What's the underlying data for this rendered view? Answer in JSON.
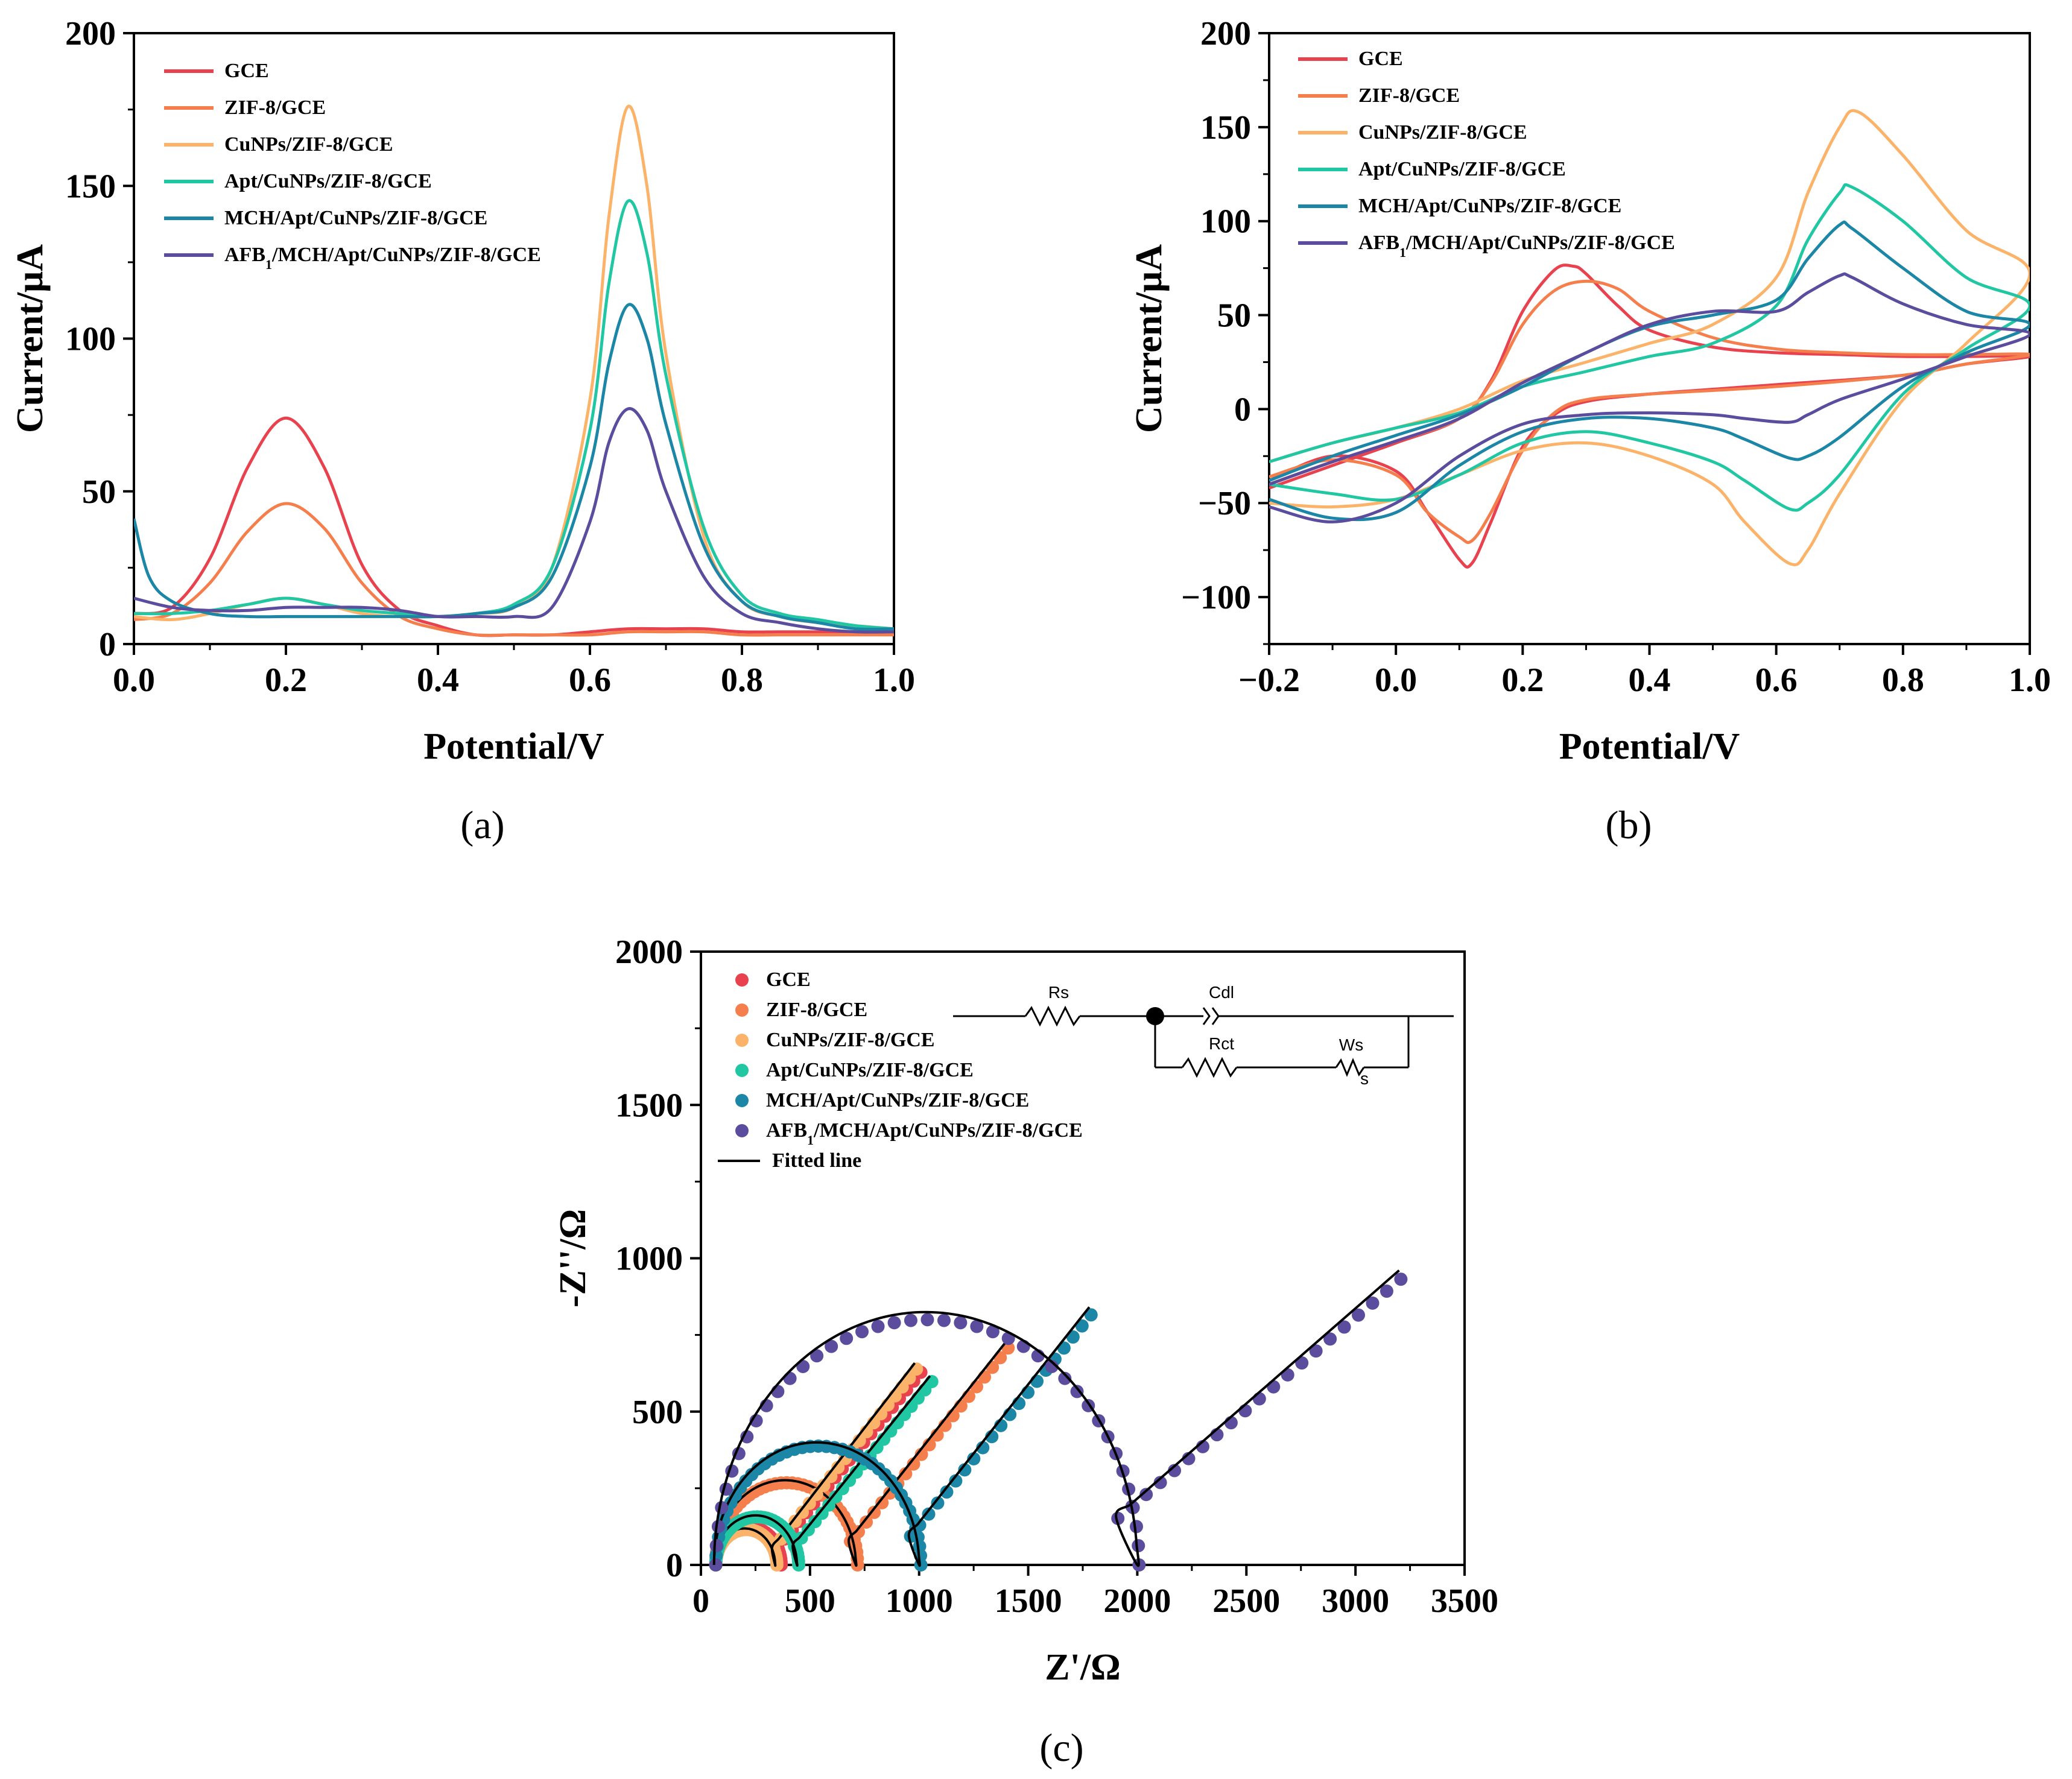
{
  "colors": {
    "GCE": "#e8424f",
    "ZIF8": "#f57f4c",
    "CuNPs": "#fbb36a",
    "Apt": "#21c7a3",
    "MCH": "#1b86a6",
    "AFB1": "#5b4c9e",
    "fit": "#000000"
  },
  "chart_data": [
    {
      "id": "a",
      "type": "line",
      "panel_label": "(a)",
      "xlabel": "Potential/V",
      "ylabel": "Current/μA",
      "xlim": [
        0,
        1.0
      ],
      "ylim": [
        0,
        200
      ],
      "xticks": [
        "0.0",
        "0.2",
        "0.4",
        "0.6",
        "0.8",
        "1.0"
      ],
      "yticks": [
        "0",
        "50",
        "100",
        "150",
        "200"
      ],
      "legend_position": "top-left",
      "series": [
        {
          "name": "GCE",
          "sub": "",
          "color_key": "GCE",
          "x": [
            0,
            0.05,
            0.1,
            0.15,
            0.2,
            0.25,
            0.3,
            0.35,
            0.4,
            0.45,
            0.5,
            0.55,
            0.6,
            0.65,
            0.7,
            0.75,
            0.8,
            0.85,
            0.9,
            0.95,
            1.0
          ],
          "y": [
            10,
            12,
            28,
            58,
            74,
            58,
            26,
            11,
            6,
            3,
            3,
            3,
            4,
            5,
            5,
            5,
            4,
            4,
            4,
            4,
            4
          ]
        },
        {
          "name": "ZIF-8/GCE",
          "sub": "",
          "color_key": "ZIF8",
          "x": [
            0,
            0.05,
            0.1,
            0.15,
            0.2,
            0.25,
            0.3,
            0.35,
            0.4,
            0.45,
            0.5,
            0.55,
            0.6,
            0.65,
            0.7,
            0.75,
            0.8,
            0.85,
            0.9,
            0.95,
            1.0
          ],
          "y": [
            8,
            10,
            20,
            37,
            46,
            38,
            20,
            9,
            5,
            3,
            3,
            3,
            3,
            4,
            4,
            4,
            3,
            3,
            3,
            3,
            3
          ]
        },
        {
          "name": "CuNPs/ZIF-8/GCE",
          "sub": "",
          "color_key": "CuNPs",
          "x": [
            0,
            0.05,
            0.1,
            0.15,
            0.2,
            0.25,
            0.3,
            0.35,
            0.4,
            0.45,
            0.5,
            0.55,
            0.6,
            0.625,
            0.65,
            0.675,
            0.7,
            0.75,
            0.8,
            0.85,
            0.9,
            0.95,
            1.0
          ],
          "y": [
            9,
            8,
            10,
            13,
            15,
            13,
            10,
            9,
            9,
            10,
            12,
            25,
            80,
            140,
            176,
            150,
            95,
            35,
            14,
            9,
            7,
            6,
            5
          ]
        },
        {
          "name": "Apt/CuNPs/ZIF-8/GCE",
          "sub": "",
          "color_key": "Apt",
          "x": [
            0,
            0.05,
            0.1,
            0.15,
            0.2,
            0.25,
            0.3,
            0.35,
            0.4,
            0.45,
            0.5,
            0.55,
            0.6,
            0.625,
            0.65,
            0.675,
            0.7,
            0.75,
            0.8,
            0.85,
            0.9,
            0.95,
            1.0
          ],
          "y": [
            10,
            10,
            11,
            13,
            15,
            13,
            11,
            10,
            9,
            10,
            13,
            25,
            70,
            118,
            145,
            128,
            88,
            38,
            16,
            10,
            8,
            6,
            5
          ]
        },
        {
          "name": "MCH/Apt/CuNPs/ZIF-8/GCE",
          "sub": "",
          "color_key": "MCH",
          "x": [
            0,
            0.02,
            0.05,
            0.1,
            0.15,
            0.2,
            0.25,
            0.3,
            0.35,
            0.4,
            0.45,
            0.5,
            0.55,
            0.6,
            0.625,
            0.65,
            0.675,
            0.7,
            0.75,
            0.8,
            0.85,
            0.9,
            0.95,
            1.0
          ],
          "y": [
            41,
            22,
            14,
            10,
            9,
            9,
            9,
            9,
            9,
            9,
            10,
            12,
            22,
            58,
            92,
            111,
            100,
            72,
            32,
            14,
            9,
            7,
            5,
            5
          ]
        },
        {
          "name": "AFB",
          "sub": "1",
          "name_suffix": "/MCH/Apt/CuNPs/ZIF-8/GCE",
          "color_key": "AFB1",
          "x": [
            0,
            0.05,
            0.1,
            0.15,
            0.2,
            0.25,
            0.3,
            0.35,
            0.4,
            0.45,
            0.5,
            0.55,
            0.6,
            0.625,
            0.65,
            0.675,
            0.7,
            0.75,
            0.8,
            0.85,
            0.9,
            0.95,
            1.0
          ],
          "y": [
            15,
            12,
            11,
            11,
            12,
            12,
            12,
            11,
            9,
            9,
            9,
            12,
            40,
            66,
            77,
            70,
            50,
            22,
            10,
            7,
            5,
            4,
            4
          ]
        }
      ]
    },
    {
      "id": "b",
      "type": "line",
      "panel_label": "(b)",
      "xlabel": "Potential/V",
      "ylabel": "Current/μA",
      "xlim": [
        -0.2,
        1.0
      ],
      "ylim": [
        -125,
        200
      ],
      "xticks": [
        "−0.2",
        "0.0",
        "0.2",
        "0.4",
        "0.6",
        "0.8",
        "1.0"
      ],
      "yticks": [
        "−100",
        "−50",
        "0",
        "50",
        "100",
        "150",
        "200"
      ],
      "legend_position": "top-left",
      "series": [
        {
          "name": "GCE",
          "sub": "",
          "color_key": "GCE",
          "x": [
            -0.2,
            -0.1,
            0.0,
            0.1,
            0.15,
            0.2,
            0.25,
            0.28,
            0.3,
            0.35,
            0.4,
            0.5,
            0.6,
            0.7,
            0.8,
            0.9,
            1.0,
            0.9,
            0.8,
            0.6,
            0.4,
            0.3,
            0.25,
            0.2,
            0.15,
            0.12,
            0.1,
            0.05,
            0.0,
            -0.1,
            -0.2
          ],
          "y": [
            -42,
            -30,
            -18,
            -5,
            15,
            52,
            74,
            76,
            72,
            55,
            42,
            33,
            30,
            29,
            28,
            28,
            28,
            24,
            18,
            13,
            8,
            4,
            -3,
            -20,
            -60,
            -82,
            -80,
            -55,
            -33,
            -25,
            -38
          ]
        },
        {
          "name": "ZIF-8/GCE",
          "sub": "",
          "color_key": "ZIF8",
          "x": [
            -0.2,
            -0.1,
            0.0,
            0.1,
            0.15,
            0.2,
            0.25,
            0.3,
            0.35,
            0.4,
            0.5,
            0.6,
            0.7,
            0.8,
            0.9,
            1.0,
            0.9,
            0.8,
            0.6,
            0.4,
            0.3,
            0.25,
            0.2,
            0.15,
            0.12,
            0.1,
            0.05,
            0.0,
            -0.1,
            -0.2
          ],
          "y": [
            -40,
            -28,
            -17,
            -5,
            14,
            45,
            63,
            68,
            64,
            52,
            38,
            32,
            30,
            29,
            29,
            29,
            24,
            18,
            12,
            8,
            5,
            -2,
            -22,
            -55,
            -70,
            -68,
            -55,
            -35,
            -27,
            -36
          ]
        },
        {
          "name": "CuNPs/ZIF-8/GCE",
          "sub": "",
          "color_key": "CuNPs",
          "x": [
            -0.2,
            -0.1,
            0.0,
            0.1,
            0.2,
            0.3,
            0.4,
            0.5,
            0.6,
            0.65,
            0.7,
            0.73,
            0.8,
            0.9,
            1.0,
            0.9,
            0.8,
            0.7,
            0.65,
            0.62,
            0.55,
            0.5,
            0.4,
            0.3,
            0.2,
            0.1,
            0.0,
            -0.1,
            -0.2
          ],
          "y": [
            -28,
            -18,
            -10,
            0,
            15,
            25,
            35,
            45,
            70,
            115,
            150,
            158,
            135,
            95,
            72,
            35,
            5,
            -45,
            -75,
            -82,
            -60,
            -40,
            -25,
            -18,
            -22,
            -35,
            -48,
            -52,
            -50
          ]
        },
        {
          "name": "Apt/CuNPs/ZIF-8/GCE",
          "sub": "",
          "color_key": "Apt",
          "x": [
            -0.2,
            -0.1,
            0.0,
            0.1,
            0.2,
            0.3,
            0.4,
            0.5,
            0.6,
            0.65,
            0.7,
            0.72,
            0.8,
            0.9,
            1.0,
            0.9,
            0.8,
            0.7,
            0.65,
            0.62,
            0.55,
            0.5,
            0.4,
            0.3,
            0.2,
            0.1,
            0.0,
            -0.1,
            -0.2
          ],
          "y": [
            -28,
            -18,
            -10,
            -2,
            12,
            20,
            28,
            35,
            55,
            90,
            115,
            118,
            100,
            70,
            55,
            32,
            8,
            -35,
            -50,
            -53,
            -38,
            -28,
            -18,
            -12,
            -18,
            -35,
            -48,
            -45,
            -40
          ]
        },
        {
          "name": "MCH/Apt/CuNPs/ZIF-8/GCE",
          "sub": "",
          "color_key": "MCH",
          "x": [
            -0.2,
            -0.1,
            0.0,
            0.1,
            0.2,
            0.3,
            0.4,
            0.5,
            0.6,
            0.65,
            0.7,
            0.72,
            0.8,
            0.9,
            1.0,
            0.9,
            0.8,
            0.7,
            0.65,
            0.62,
            0.55,
            0.5,
            0.4,
            0.3,
            0.2,
            0.1,
            0.0,
            -0.1,
            -0.2
          ],
          "y": [
            -38,
            -25,
            -14,
            -3,
            12,
            30,
            44,
            50,
            58,
            80,
            98,
            96,
            75,
            52,
            45,
            30,
            12,
            -15,
            -25,
            -26,
            -16,
            -10,
            -5,
            -5,
            -12,
            -30,
            -55,
            -58,
            -48
          ]
        },
        {
          "name": "AFB",
          "sub": "1",
          "name_suffix": "/MCH/Apt/CuNPs/ZIF-8/GCE",
          "color_key": "AFB1",
          "x": [
            -0.2,
            -0.1,
            0.0,
            0.1,
            0.2,
            0.3,
            0.4,
            0.5,
            0.6,
            0.65,
            0.7,
            0.72,
            0.8,
            0.9,
            1.0,
            0.9,
            0.8,
            0.7,
            0.65,
            0.62,
            0.55,
            0.5,
            0.4,
            0.3,
            0.2,
            0.1,
            0.0,
            -0.1,
            -0.2
          ],
          "y": [
            -40,
            -28,
            -17,
            -5,
            14,
            30,
            45,
            52,
            52,
            62,
            71,
            70,
            56,
            45,
            40,
            28,
            16,
            5,
            -3,
            -7,
            -5,
            -3,
            -2,
            -3,
            -8,
            -25,
            -50,
            -60,
            -52
          ]
        }
      ]
    },
    {
      "id": "c",
      "type": "scatter",
      "panel_label": "(c)",
      "xlabel": "Z'/Ω",
      "ylabel": "-Z''/Ω",
      "xlim": [
        0,
        3500
      ],
      "ylim": [
        0,
        2000
      ],
      "xticks": [
        "0",
        "500",
        "1000",
        "1500",
        "2000",
        "2500",
        "3000",
        "3500"
      ],
      "yticks": [
        "0",
        "500",
        "1000",
        "1500",
        "2000"
      ],
      "legend_position": "top-left",
      "fit_label": "Fitted line",
      "circuit": {
        "rs": "Rs",
        "cdl": "Cdl",
        "rct": "Rct",
        "ws": "Ws",
        "ws_sub": "s"
      },
      "series": [
        {
          "name": "GCE",
          "sub": "",
          "color_key": "GCE",
          "Rs": 60,
          "Rct": 300,
          "warburg_slope": 0.9,
          "tail_end_x": 1000
        },
        {
          "name": "ZIF-8/GCE",
          "sub": "",
          "color_key": "ZIF8",
          "Rs": 60,
          "Rct": 650,
          "warburg_slope": 0.9,
          "tail_end_x": 1400
        },
        {
          "name": "CuNPs/ZIF-8/GCE",
          "sub": "",
          "color_key": "CuNPs",
          "Rs": 60,
          "Rct": 280,
          "warburg_slope": 0.92,
          "tail_end_x": 980
        },
        {
          "name": "Apt/CuNPs/ZIF-8/GCE",
          "sub": "",
          "color_key": "Apt",
          "Rs": 60,
          "Rct": 380,
          "warburg_slope": 0.88,
          "tail_end_x": 1050
        },
        {
          "name": "MCH/Apt/CuNPs/ZIF-8/GCE",
          "sub": "",
          "color_key": "MCH",
          "Rs": 60,
          "Rct": 940,
          "warburg_slope": 0.9,
          "tail_end_x": 1780
        },
        {
          "name": "AFB",
          "sub": "1",
          "name_suffix": "/MCH/Apt/CuNPs/ZIF-8/GCE",
          "color_key": "AFB1",
          "Rs": 60,
          "Rct": 1940,
          "warburg_slope": 0.62,
          "tail_end_x": 3200
        }
      ]
    }
  ]
}
